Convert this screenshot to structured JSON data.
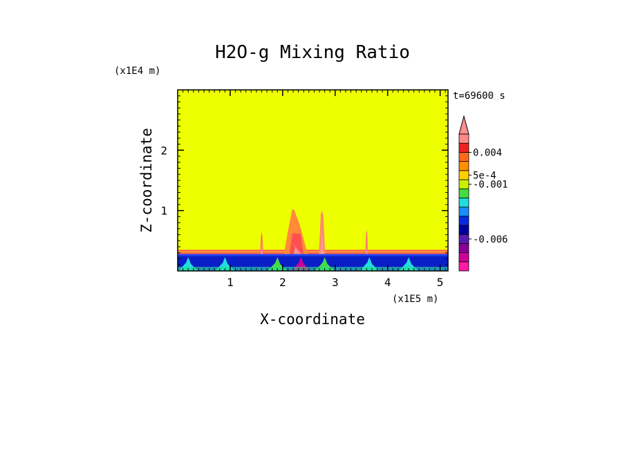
{
  "chart_data": {
    "type": "heatmap",
    "title": "H2O-g Mixing Ratio",
    "xlabel": "X-coordinate",
    "ylabel": "Z-coordinate",
    "x_scale_label": "(x1E5 m)",
    "y_scale_label": "(x1E4 m)",
    "time_label": "t=69600 s",
    "xlim": [
      0,
      5.15
    ],
    "ylim": [
      0,
      3.0
    ],
    "x_ticks": [
      {
        "value": 1,
        "label": "1"
      },
      {
        "value": 2,
        "label": "2"
      },
      {
        "value": 3,
        "label": "3"
      },
      {
        "value": 4,
        "label": "4"
      },
      {
        "value": 5,
        "label": "5"
      }
    ],
    "y_ticks": [
      {
        "value": 1,
        "label": "1"
      },
      {
        "value": 2,
        "label": "2"
      }
    ],
    "colorbar": {
      "bands": [
        "#ff1aa3",
        "#cc0099",
        "#880099",
        "#5a1ab0",
        "#0000a0",
        "#0a2ae0",
        "#1a8cff",
        "#22dddd",
        "#44dd44",
        "#c8f000",
        "#ffd000",
        "#ff9000",
        "#ff6a1a",
        "#ee2222",
        "#ff8888"
      ],
      "extend_color": "#ff9090",
      "tick_labels": [
        "0.004",
        "5e-4",
        "-0.001",
        "-0.006"
      ],
      "tick_band_index": [
        13.0,
        10.5,
        9.5,
        3.5
      ]
    },
    "field": {
      "background_color": "#eeff00",
      "surface_layer": {
        "z_top": 0.28,
        "color": "#2244ee"
      },
      "red_inversion": {
        "z_bottom": 0.28,
        "z_top": 0.35,
        "color": "#ff5a4a"
      },
      "plumes": [
        {
          "x_center": 1.6,
          "width": 0.06,
          "z_top": 0.65,
          "color": "#ff6a6a"
        },
        {
          "x_center": 2.25,
          "width": 0.45,
          "z_top": 1.02,
          "color": "#ff8a3a"
        },
        {
          "x_center": 2.75,
          "width": 0.12,
          "z_top": 1.0,
          "color": "#ff8a6a"
        },
        {
          "x_center": 3.6,
          "width": 0.05,
          "z_top": 0.68,
          "color": "#ff6a6a"
        }
      ],
      "surface_features": [
        {
          "x_center": 0.2,
          "color": "#22dddd"
        },
        {
          "x_center": 0.9,
          "color": "#22dddd"
        },
        {
          "x_center": 1.9,
          "color": "#44dd44"
        },
        {
          "x_center": 2.35,
          "color": "#cc0099"
        },
        {
          "x_center": 2.8,
          "color": "#44dd44"
        },
        {
          "x_center": 3.65,
          "color": "#22dddd"
        },
        {
          "x_center": 4.4,
          "color": "#22dddd"
        }
      ]
    }
  }
}
